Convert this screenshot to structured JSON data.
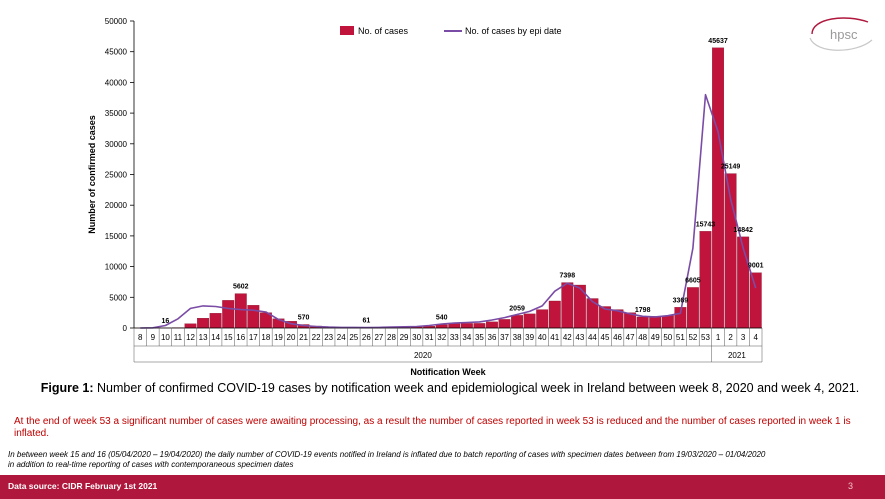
{
  "chart_data": {
    "type": "bar",
    "ylabel": "Number of confirmed cases",
    "xlabel": "Notification Week",
    "ylim": [
      0,
      50000
    ],
    "yticks": [
      0,
      5000,
      10000,
      15000,
      20000,
      25000,
      30000,
      35000,
      40000,
      45000,
      50000
    ],
    "categories": [
      "8",
      "9",
      "10",
      "11",
      "12",
      "13",
      "14",
      "15",
      "16",
      "17",
      "18",
      "19",
      "20",
      "21",
      "22",
      "23",
      "24",
      "25",
      "26",
      "27",
      "28",
      "29",
      "30",
      "31",
      "32",
      "33",
      "34",
      "35",
      "36",
      "37",
      "38",
      "39",
      "40",
      "41",
      "42",
      "43",
      "44",
      "45",
      "46",
      "47",
      "48",
      "49",
      "50",
      "51",
      "52",
      "53",
      "1",
      "2",
      "3",
      "4"
    ],
    "year_groups": [
      {
        "label": "2020",
        "start": 0,
        "end": 45
      },
      {
        "label": "2021",
        "start": 46,
        "end": 49
      }
    ],
    "legend_position": "top",
    "series": [
      {
        "name": "No. of cases",
        "kind": "bar",
        "color": "#c0143c",
        "values": [
          2,
          6,
          16,
          60,
          700,
          1600,
          2400,
          4500,
          5602,
          3700,
          2500,
          1500,
          1100,
          570,
          320,
          160,
          100,
          80,
          61,
          90,
          120,
          160,
          200,
          300,
          540,
          700,
          750,
          750,
          1000,
          1400,
          2059,
          2300,
          3000,
          4400,
          7398,
          7000,
          4800,
          3500,
          3000,
          2500,
          1798,
          1900,
          2000,
          3369,
          6605,
          15743,
          45637,
          25149,
          14842,
          9001
        ]
      },
      {
        "name": "No. of cases by epi date",
        "kind": "line",
        "color": "#7a4ca6",
        "values": [
          0,
          30,
          400,
          1500,
          3200,
          3600,
          3500,
          3200,
          3000,
          2900,
          2600,
          1400,
          700,
          400,
          250,
          150,
          100,
          90,
          80,
          100,
          150,
          200,
          250,
          400,
          650,
          800,
          900,
          1000,
          1300,
          1700,
          2200,
          2700,
          3600,
          6000,
          7300,
          6500,
          4300,
          3100,
          2800,
          2300,
          1900,
          1800,
          2000,
          2400,
          13000,
          38000,
          32000,
          21000,
          13000,
          6500
        ]
      }
    ],
    "data_labels": [
      {
        "index": 2,
        "text": "16"
      },
      {
        "index": 8,
        "text": "5602"
      },
      {
        "index": 21,
        "text": "570"
      },
      {
        "index": 26,
        "text": "61"
      },
      {
        "index": 32,
        "text": "540"
      },
      {
        "index": 38,
        "text": "2059"
      },
      {
        "index": 42,
        "text": "7398"
      },
      {
        "index": 48,
        "text": "1798"
      },
      {
        "index": 51,
        "text": "3369"
      },
      {
        "index": 52,
        "text": "6605"
      },
      {
        "index": 53,
        "text": "15743"
      },
      {
        "index": 54,
        "text": "45637"
      },
      {
        "index": 55,
        "text": "25149"
      },
      {
        "index": 56,
        "text": "14842"
      },
      {
        "index": 57,
        "text": "9001"
      }
    ]
  },
  "caption": {
    "prefix": "Figure 1:",
    "text": " Number of confirmed COVID-19 cases by notification week and epidemiological week in Ireland between week 8, 2020 and week 4, 2021."
  },
  "note_red": "At the end of week 53 a significant number of cases were awaiting processing, as a result the number of cases reported in week 53 is reduced and the number of cases reported in week 1 is inflated.",
  "note_small_1": "In between week 15 and 16 (05/04/2020 – 19/04/2020) the daily number of COVID-19 events notified in Ireland is inflated due to batch reporting of cases with specimen dates between from 19/03/2020 – 01/04/2020",
  "note_small_2": "in addition to real-time reporting of cases with contemporaneous specimen dates",
  "footer": {
    "source": "Data source: CIDR  February 1st 2021",
    "page_number": "3"
  },
  "logo": {
    "text": "hpsc"
  },
  "colors": {
    "footer": "#b0173c",
    "bars": "#c0143c",
    "line": "#7a4ca6",
    "note": "#c00000"
  }
}
